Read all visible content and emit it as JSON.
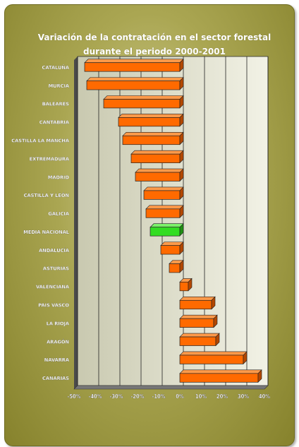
{
  "chart_data": {
    "type": "bar",
    "orientation": "horizontal",
    "title": "Variación de la contratación en el sector forestal durante el periodo 2000-2001",
    "title_lines": [
      "Variación de la contratación en el sector forestal",
      "durante el periodo 2000-2001"
    ],
    "categories": [
      "CATALUÑA",
      "MURCIA",
      "BALEARES",
      "CANTABRIA",
      "CASTILLA LA MANCHA",
      "EXTREMADURA",
      "MADRID",
      "CASTILLA Y LEÓN",
      "GALICIA",
      "MEDIA NACIONAL",
      "ANDALUCÍA",
      "ASTURIAS",
      "VALENCIANA",
      "PAIS VASCO",
      "LA RIOJA",
      "ARAGÓN",
      "NAVARRA",
      "CANARIAS"
    ],
    "values": [
      -45,
      -44,
      -36,
      -29,
      -27,
      -23,
      -21,
      -17,
      -16,
      -14,
      -9,
      -5,
      4,
      15,
      16,
      17,
      30,
      37
    ],
    "highlight": "MEDIA NACIONAL",
    "xlim": [
      -50,
      40
    ],
    "xticks": [
      "-50%",
      "-40%",
      "-30%",
      "-20%",
      "-10%",
      "0%",
      "10%",
      "20%",
      "30%",
      "40%"
    ],
    "grid": true,
    "colors": {
      "bar": "#ff6a00",
      "highlight": "#33dd22",
      "title": "#ffffff"
    }
  }
}
